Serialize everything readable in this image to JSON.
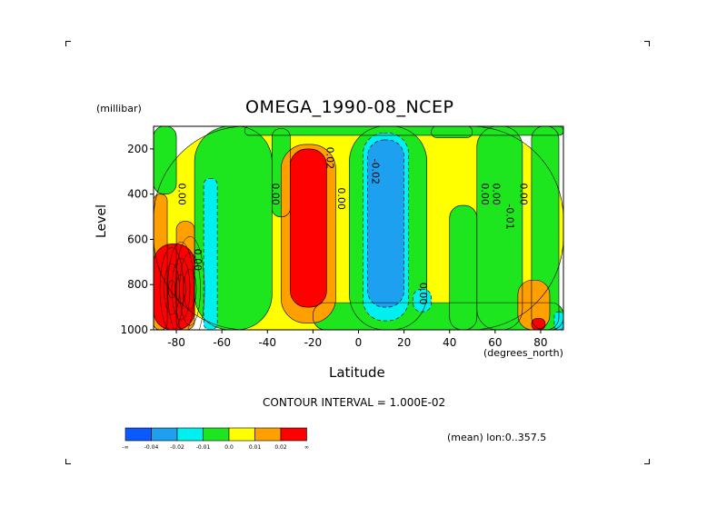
{
  "chart_data": {
    "type": "heatmap",
    "title": "OMEGA_1990-08_NCEP",
    "ylabel": "Level",
    "yunits": "(millibar)",
    "xlabel": "Latitude",
    "xunits": "(degrees_north)",
    "xlim": [
      -90,
      90
    ],
    "ylim": [
      1000,
      100
    ],
    "x_ticks": [
      "-80",
      "-60",
      "-40",
      "-20",
      "0",
      "20",
      "40",
      "60",
      "80"
    ],
    "x_tick_values": [
      -80,
      -60,
      -40,
      -20,
      0,
      20,
      40,
      60,
      80
    ],
    "y_ticks": [
      "200",
      "400",
      "600",
      "800",
      "1000"
    ],
    "y_tick_values": [
      200,
      400,
      600,
      800,
      1000
    ],
    "contour_interval_text": "CONTOUR INTERVAL = 1.000E-02",
    "mean_text": "(mean) lon:0..357.5",
    "contour_labels": [
      "0.00",
      "0.00",
      "0.02",
      "0.00",
      "-0.02",
      "0.00",
      "0.00",
      "0.00",
      "0.00",
      "0.00",
      "-0.01"
    ],
    "colorbar": {
      "colors": [
        "#0a5aff",
        "#1ea0f0",
        "#00f0f0",
        "#1ee61e",
        "#ffff00",
        "#ffa000",
        "#ff0000"
      ],
      "labels": [
        "-∞",
        "-0.04",
        "-0.02",
        "-0.01",
        "0.0",
        "0.01",
        "0.02",
        "∞"
      ]
    },
    "regions": [
      {
        "level": 4,
        "lat": [
          -90,
          90
        ],
        "p": [
          100,
          1000
        ]
      },
      {
        "level": 3,
        "lat": [
          -72,
          -38
        ],
        "p": [
          100,
          1000
        ]
      },
      {
        "level": 3,
        "lat": [
          -38,
          -30
        ],
        "p": [
          110,
          500
        ]
      },
      {
        "level": 3,
        "lat": [
          -50,
          90
        ],
        "p": [
          100,
          140
        ]
      },
      {
        "level": 3,
        "lat": [
          -20,
          90
        ],
        "p": [
          880,
          1000
        ]
      },
      {
        "level": 3,
        "lat": [
          -4,
          30
        ],
        "p": [
          100,
          1000
        ]
      },
      {
        "level": 3,
        "lat": [
          32,
          50
        ],
        "p": [
          100,
          150
        ]
      },
      {
        "level": 3,
        "lat": [
          40,
          52
        ],
        "p": [
          450,
          1000
        ]
      },
      {
        "level": 3,
        "lat": [
          52,
          72
        ],
        "p": [
          100,
          1000
        ]
      },
      {
        "level": 3,
        "lat": [
          76,
          88
        ],
        "p": [
          100,
          1000
        ]
      },
      {
        "level": 3,
        "lat": [
          -90,
          -80
        ],
        "p": [
          100,
          400
        ]
      },
      {
        "level": 5,
        "lat": [
          -90,
          -84
        ],
        "p": [
          400,
          1000
        ]
      },
      {
        "level": 5,
        "lat": [
          -80,
          -72
        ],
        "p": [
          520,
          1000
        ]
      },
      {
        "level": 5,
        "lat": [
          -34,
          -10
        ],
        "p": [
          180,
          970
        ]
      },
      {
        "level": 5,
        "lat": [
          70,
          84
        ],
        "p": [
          780,
          1000
        ]
      },
      {
        "level": 2,
        "lat": [
          -68,
          -62
        ],
        "p": [
          330,
          1000
        ]
      },
      {
        "level": 2,
        "lat": [
          2,
          22
        ],
        "p": [
          130,
          960
        ]
      },
      {
        "level": 2,
        "lat": [
          24,
          32
        ],
        "p": [
          820,
          920
        ]
      },
      {
        "level": 2,
        "lat": [
          86,
          90
        ],
        "p": [
          920,
          1000
        ]
      },
      {
        "level": 1,
        "lat": [
          4,
          20
        ],
        "p": [
          160,
          900
        ]
      },
      {
        "level": 6,
        "lat": [
          -30,
          -14
        ],
        "p": [
          200,
          900
        ]
      },
      {
        "level": 6,
        "lat": [
          -90,
          -72
        ],
        "p": [
          620,
          1000
        ]
      },
      {
        "level": 6,
        "lat": [
          76,
          82
        ],
        "p": [
          950,
          1000
        ]
      }
    ]
  }
}
